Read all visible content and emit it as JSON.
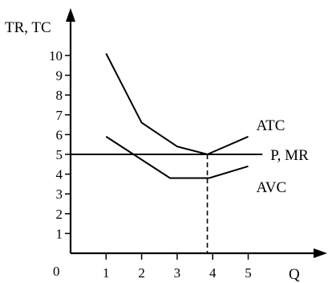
{
  "chart_data": {
    "type": "line",
    "ylabel": "TR, TC",
    "xlabel": "Q",
    "origin_label": "0",
    "xlim": [
      0,
      5
    ],
    "ylim": [
      0,
      10
    ],
    "x_ticks": [
      "1",
      "2",
      "3",
      "4",
      "5"
    ],
    "y_ticks": [
      "1",
      "2",
      "3",
      "4",
      "5",
      "6",
      "7",
      "8",
      "9",
      "10"
    ],
    "grid": false,
    "series": [
      {
        "name": "ATC",
        "points": [
          [
            1,
            10.1
          ],
          [
            2,
            6.6
          ],
          [
            3,
            5.4
          ],
          [
            3.85,
            5.0
          ],
          [
            5,
            5.9
          ]
        ]
      },
      {
        "name": "AVC",
        "points": [
          [
            1,
            5.9
          ],
          [
            2.8,
            3.8
          ],
          [
            3.9,
            3.8
          ],
          [
            5,
            4.4
          ]
        ]
      },
      {
        "name": "P, MR",
        "points": [
          [
            0,
            5
          ],
          [
            5.4,
            5
          ]
        ]
      }
    ],
    "vertical_line": {
      "x": 3.85,
      "from_y": 0,
      "to_y": 5.0,
      "style": "dashed"
    }
  }
}
